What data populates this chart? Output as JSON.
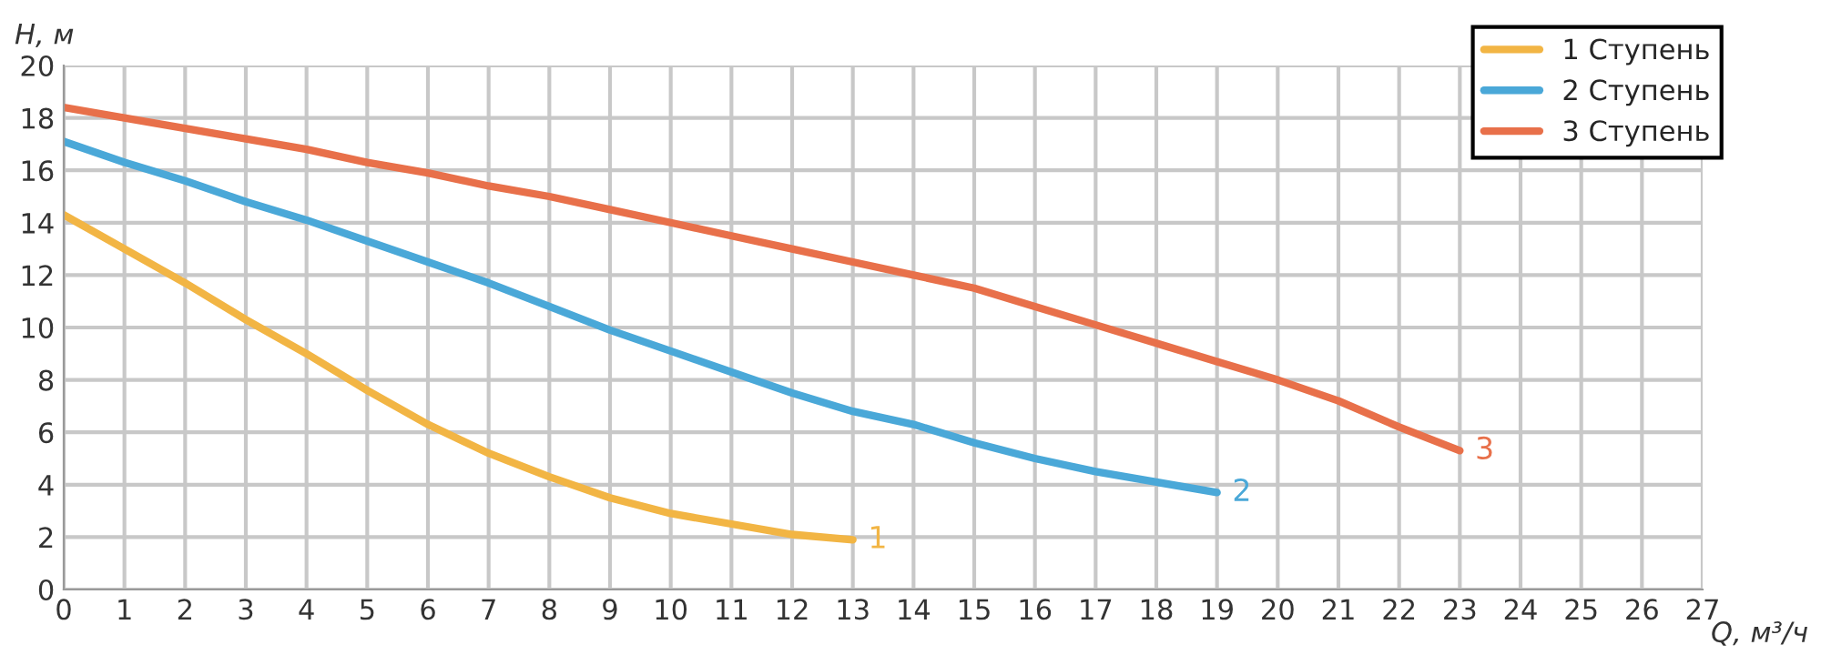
{
  "chart_data": {
    "type": "line",
    "xlabel": "Q, м³/ч",
    "ylabel": "H, м",
    "xlim": [
      0,
      27
    ],
    "xticks": [
      0,
      1,
      2,
      3,
      4,
      5,
      6,
      7,
      8,
      9,
      10,
      11,
      12,
      13,
      14,
      15,
      16,
      17,
      18,
      19,
      20,
      21,
      22,
      23,
      24,
      25,
      26,
      27
    ],
    "ylim": [
      0,
      20
    ],
    "yticks": [
      0,
      2,
      4,
      6,
      8,
      10,
      12,
      14,
      16,
      18,
      20
    ],
    "grid": true,
    "legend": "top right",
    "line_style": "solid",
    "marker": "none",
    "series": [
      {
        "name": "1 Ступень",
        "color": "#f2b544",
        "x": [
          0,
          1,
          2,
          3,
          4,
          5,
          6,
          7,
          8,
          9,
          10,
          11,
          12,
          13
        ],
        "values": [
          14.3,
          13.0,
          11.7,
          10.3,
          9.0,
          7.6,
          6.3,
          5.2,
          4.3,
          3.5,
          2.9,
          2.5,
          2.1,
          1.9
        ]
      },
      {
        "name": "2 Ступень",
        "color": "#4aa8d8",
        "x": [
          0,
          1,
          2,
          3,
          4,
          5,
          6,
          7,
          8,
          9,
          10,
          11,
          12,
          13,
          14,
          15,
          16,
          17,
          18,
          19
        ],
        "values": [
          17.1,
          16.3,
          15.6,
          14.8,
          14.1,
          13.3,
          12.5,
          11.7,
          10.8,
          9.9,
          9.1,
          8.3,
          7.5,
          6.8,
          6.3,
          5.6,
          5.0,
          4.5,
          4.1,
          3.7
        ]
      },
      {
        "name": "3 Ступень",
        "color": "#e8704a",
        "x": [
          0,
          1,
          2,
          3,
          4,
          5,
          6,
          7,
          8,
          9,
          10,
          11,
          12,
          13,
          14,
          15,
          16,
          17,
          18,
          19,
          20,
          21,
          22,
          23
        ],
        "values": [
          18.4,
          18.0,
          17.6,
          17.2,
          16.8,
          16.3,
          15.9,
          15.4,
          15.0,
          14.5,
          14.0,
          13.5,
          13.0,
          12.5,
          12.0,
          11.5,
          10.8,
          10.1,
          9.4,
          8.7,
          8.0,
          7.2,
          6.2,
          5.3
        ]
      }
    ],
    "annotations": [
      {
        "text": "1",
        "x": 13,
        "y": 1.9
      },
      {
        "text": "2",
        "x": 19,
        "y": 3.7
      },
      {
        "text": "3",
        "x": 23,
        "y": 5.3
      }
    ]
  }
}
